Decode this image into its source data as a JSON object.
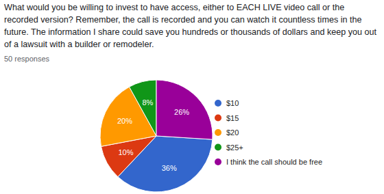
{
  "chart_data": {
    "type": "pie",
    "title": "What would you be willing to invest to have access, either to EACH LIVE video call or the recorded version? Remember, the call is recorded and you can watch it countless times in the future. The information I share could save you hundreds or thousands of dollars and keep you out of a lawsuit with a builder or remodeler.",
    "subtitle": "50 responses",
    "categories": [
      "$10",
      "$15",
      "$20",
      "$25+",
      "I think the call should be free"
    ],
    "values": [
      36,
      10,
      20,
      8,
      26
    ],
    "value_labels": [
      "36%",
      "10%",
      "20%",
      "8%",
      "26%"
    ],
    "colors": [
      "#3366cc",
      "#dc3912",
      "#ff9900",
      "#109618",
      "#990099"
    ],
    "data_labels": true,
    "legend": "right"
  }
}
